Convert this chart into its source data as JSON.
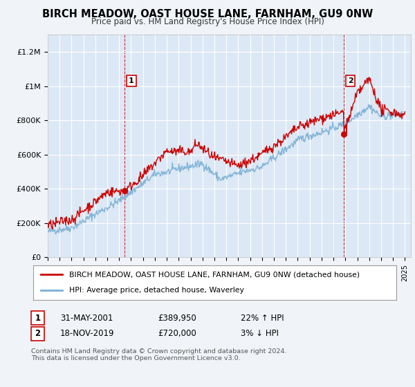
{
  "title": "BIRCH MEADOW, OAST HOUSE LANE, FARNHAM, GU9 0NW",
  "subtitle": "Price paid vs. HM Land Registry's House Price Index (HPI)",
  "legend_line1": "BIRCH MEADOW, OAST HOUSE LANE, FARNHAM, GU9 0NW (detached house)",
  "legend_line2": "HPI: Average price, detached house, Waverley",
  "annotation1_date": "31-MAY-2001",
  "annotation1_price": "£389,950",
  "annotation1_hpi": "22% ↑ HPI",
  "annotation2_date": "18-NOV-2019",
  "annotation2_price": "£720,000",
  "annotation2_hpi": "3% ↓ HPI",
  "footer": "Contains HM Land Registry data © Crown copyright and database right 2024.\nThis data is licensed under the Open Government Licence v3.0.",
  "ylim": [
    0,
    1300000
  ],
  "yticks": [
    0,
    200000,
    400000,
    600000,
    800000,
    1000000,
    1200000
  ],
  "ytick_labels": [
    "£0",
    "£200K",
    "£400K",
    "£600K",
    "£800K",
    "£1M",
    "£1.2M"
  ],
  "red_color": "#cc0000",
  "blue_color": "#7aafd4",
  "background_color": "#f0f4f8",
  "plot_bg_color": "#dce8f5",
  "grid_color": "#ffffff"
}
